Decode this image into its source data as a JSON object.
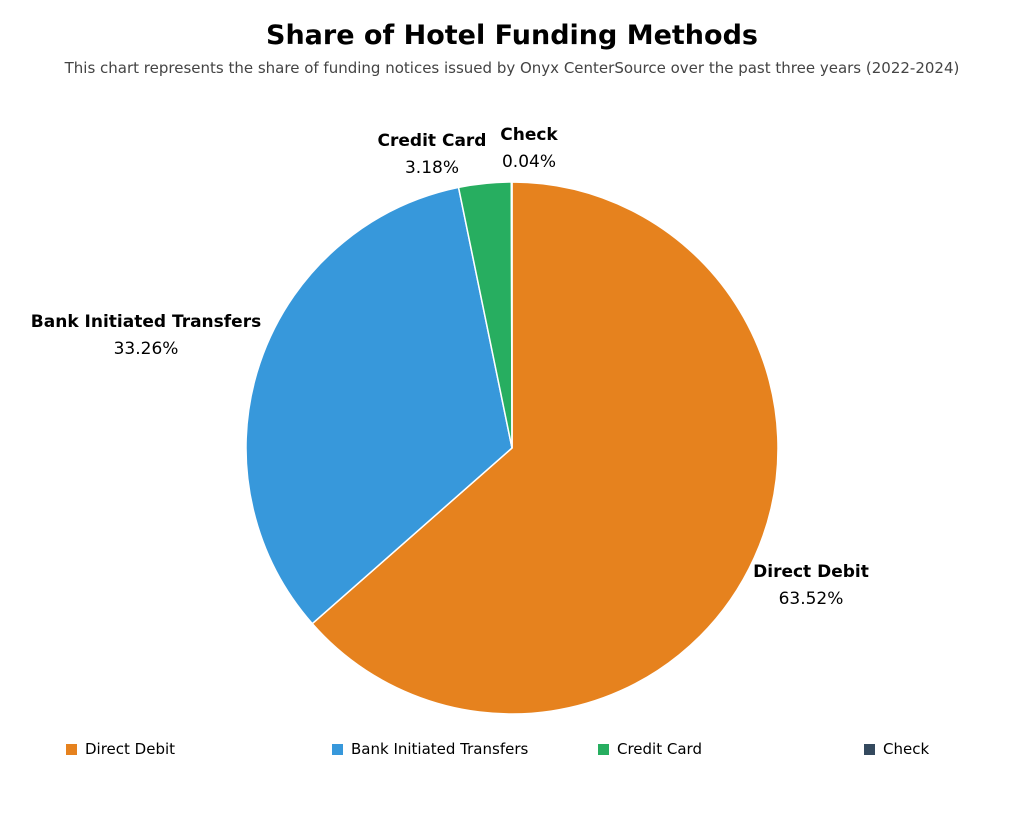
{
  "chart_data": {
    "type": "pie",
    "title": "Share of Hotel Funding Methods",
    "subtitle": "This chart represents the share of funding notices issued by Onyx CenterSource over the past three years (2022-2024)",
    "slices": [
      {
        "name": "Direct Debit",
        "value": 63.52,
        "label": "63.52%",
        "color": "#E6821E"
      },
      {
        "name": "Bank Initiated Transfers",
        "value": 33.26,
        "label": "33.26%",
        "color": "#3798DB"
      },
      {
        "name": "Credit Card",
        "value": 3.18,
        "label": "3.18%",
        "color": "#27AE60"
      },
      {
        "name": "Check",
        "value": 0.04,
        "label": "0.04%",
        "color": "#34495E"
      }
    ],
    "legend": {
      "placement": "bottom",
      "entries": [
        "Direct Debit",
        "Bank Initiated Transfers",
        "Credit Card",
        "Check"
      ]
    }
  }
}
